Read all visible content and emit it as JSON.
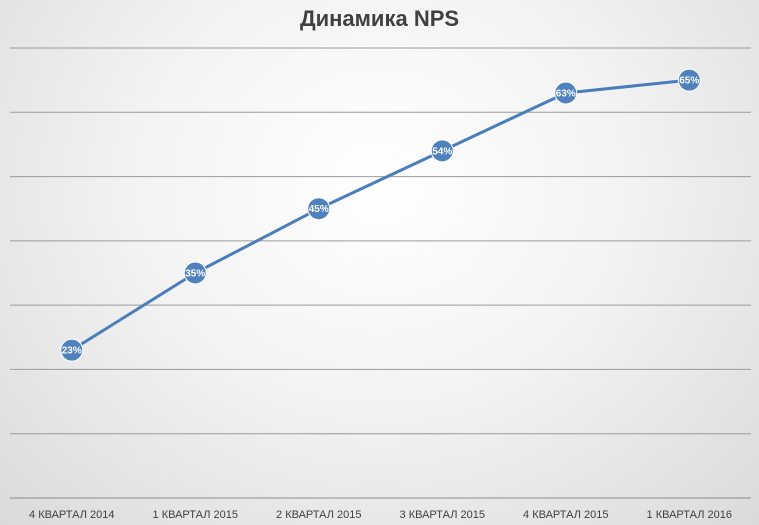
{
  "chart_data": {
    "type": "line",
    "title": "Динамика NPS",
    "categories": [
      "4 КВАРТАЛ 2014",
      "1 КВАРТАЛ 2015",
      "2 КВАРТАЛ 2015",
      "3 КВАРТАЛ 2015",
      "4 КВАРТАЛ 2015",
      "1 КВАРТАЛ 2016"
    ],
    "series": [
      {
        "values": [
          23,
          35,
          45,
          54,
          63,
          65
        ],
        "labels": [
          "23%",
          "35%",
          "45%",
          "54%",
          "63%",
          "65%"
        ]
      }
    ],
    "ylim": [
      0,
      70
    ],
    "grid": true,
    "y_axis_labels_shown": false,
    "legend": "none"
  },
  "colors": {
    "line": "#4a7ebb",
    "marker": "#4f81bd",
    "grid": "#9a9a9a",
    "axis": "#8c8c8c",
    "title": "#404040"
  }
}
